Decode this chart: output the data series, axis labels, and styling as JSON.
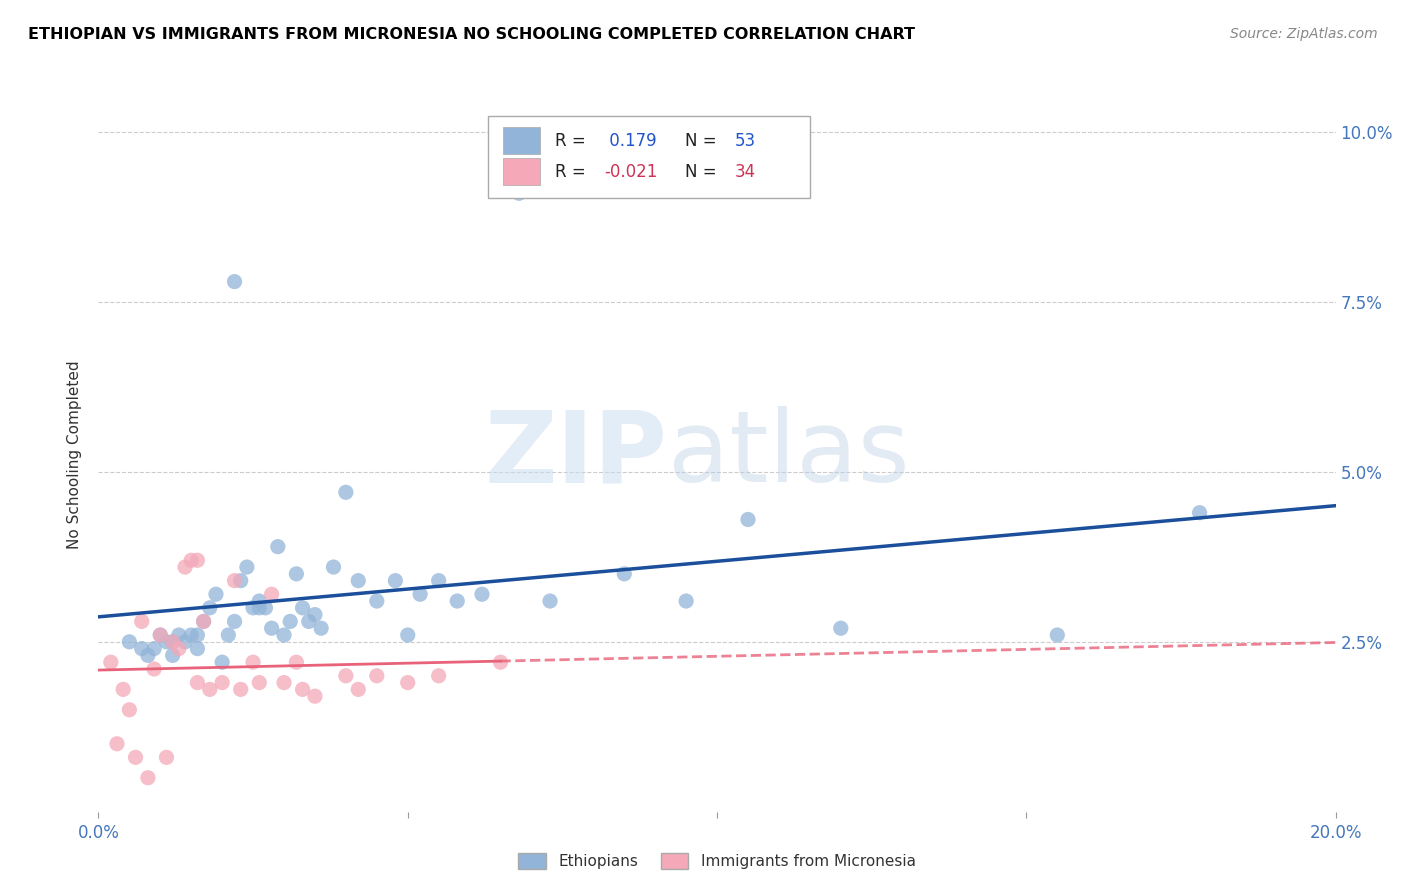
{
  "title": "ETHIOPIAN VS IMMIGRANTS FROM MICRONESIA NO SCHOOLING COMPLETED CORRELATION CHART",
  "source": "Source: ZipAtlas.com",
  "ylabel": "No Schooling Completed",
  "xlabel": "",
  "xlim": [
    0.0,
    0.2
  ],
  "ylim": [
    0.0,
    0.105
  ],
  "xticks": [
    0.0,
    0.05,
    0.1,
    0.15,
    0.2
  ],
  "yticks": [
    0.0,
    0.025,
    0.05,
    0.075,
    0.1
  ],
  "R_blue": 0.179,
  "N_blue": 53,
  "R_pink": -0.021,
  "N_pink": 34,
  "blue_color": "#92B4D8",
  "pink_color": "#F4A8B8",
  "line_blue": "#1B4F9C",
  "line_pink": "#E8637A",
  "watermark_zip": "ZIP",
  "watermark_atlas": "atlas",
  "blue_scatter_x": [
    0.005,
    0.007,
    0.008,
    0.009,
    0.01,
    0.011,
    0.012,
    0.012,
    0.013,
    0.014,
    0.015,
    0.016,
    0.016,
    0.017,
    0.018,
    0.019,
    0.02,
    0.021,
    0.022,
    0.022,
    0.023,
    0.024,
    0.025,
    0.026,
    0.026,
    0.027,
    0.028,
    0.029,
    0.03,
    0.031,
    0.032,
    0.033,
    0.034,
    0.035,
    0.036,
    0.038,
    0.04,
    0.042,
    0.045,
    0.048,
    0.05,
    0.052,
    0.055,
    0.058,
    0.062,
    0.068,
    0.073,
    0.085,
    0.095,
    0.105,
    0.12,
    0.155,
    0.178
  ],
  "blue_scatter_y": [
    0.025,
    0.024,
    0.023,
    0.024,
    0.026,
    0.025,
    0.023,
    0.025,
    0.026,
    0.025,
    0.026,
    0.024,
    0.026,
    0.028,
    0.03,
    0.032,
    0.022,
    0.026,
    0.078,
    0.028,
    0.034,
    0.036,
    0.03,
    0.031,
    0.03,
    0.03,
    0.027,
    0.039,
    0.026,
    0.028,
    0.035,
    0.03,
    0.028,
    0.029,
    0.027,
    0.036,
    0.047,
    0.034,
    0.031,
    0.034,
    0.026,
    0.032,
    0.034,
    0.031,
    0.032,
    0.091,
    0.031,
    0.035,
    0.031,
    0.043,
    0.027,
    0.026,
    0.044
  ],
  "pink_scatter_x": [
    0.002,
    0.003,
    0.004,
    0.005,
    0.006,
    0.007,
    0.008,
    0.009,
    0.01,
    0.011,
    0.012,
    0.013,
    0.014,
    0.015,
    0.016,
    0.016,
    0.017,
    0.018,
    0.02,
    0.022,
    0.023,
    0.025,
    0.026,
    0.028,
    0.03,
    0.032,
    0.033,
    0.035,
    0.04,
    0.042,
    0.045,
    0.05,
    0.055,
    0.065
  ],
  "pink_scatter_y": [
    0.022,
    0.01,
    0.018,
    0.015,
    0.008,
    0.028,
    0.005,
    0.021,
    0.026,
    0.008,
    0.025,
    0.024,
    0.036,
    0.037,
    0.037,
    0.019,
    0.028,
    0.018,
    0.019,
    0.034,
    0.018,
    0.022,
    0.019,
    0.032,
    0.019,
    0.022,
    0.018,
    0.017,
    0.02,
    0.018,
    0.02,
    0.019,
    0.02,
    0.022
  ]
}
